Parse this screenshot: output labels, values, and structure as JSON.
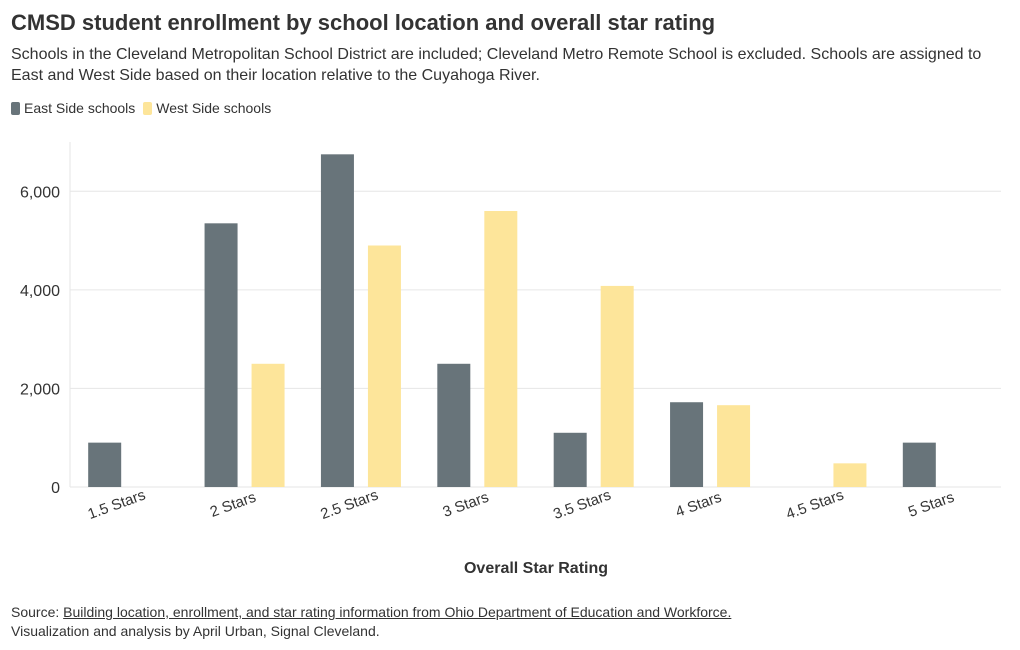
{
  "title": "CMSD student enrollment by school location and overall star rating",
  "subtitle": "Schools in the Cleveland Metropolitan School District are included; Cleveland Metro Remote School is excluded. Schools are assigned to East and West Side based on their location relative to the Cuyahoga River.",
  "footer": {
    "source_prefix": "Source: ",
    "source_link": "Building location, enrollment, and star rating information from Ohio Department of Education and Workforce.",
    "credit": "Visualization and analysis by April Urban, Signal Cleveland."
  },
  "chart_data": {
    "type": "bar",
    "title": "CMSD student enrollment by school location and overall star rating",
    "xlabel": "Overall Star Rating",
    "ylabel": "",
    "ylim": [
      0,
      7000
    ],
    "yticks": [
      0,
      2000,
      4000,
      6000
    ],
    "ytick_labels": [
      "0",
      "2,000",
      "4,000",
      "6,000"
    ],
    "grid": true,
    "legend_position": "top-left",
    "categories": [
      "1.5 Stars",
      "2 Stars",
      "2.5 Stars",
      "3 Stars",
      "3.5 Stars",
      "4 Stars",
      "4.5 Stars",
      "5 Stars"
    ],
    "series": [
      {
        "name": "East Side schools",
        "color": "#68747a",
        "values": [
          900,
          5350,
          6750,
          2500,
          1100,
          1720,
          null,
          900
        ]
      },
      {
        "name": "West Side schools",
        "color": "#fde59a",
        "values": [
          null,
          2500,
          4900,
          5600,
          4080,
          1660,
          480,
          null
        ]
      }
    ]
  }
}
